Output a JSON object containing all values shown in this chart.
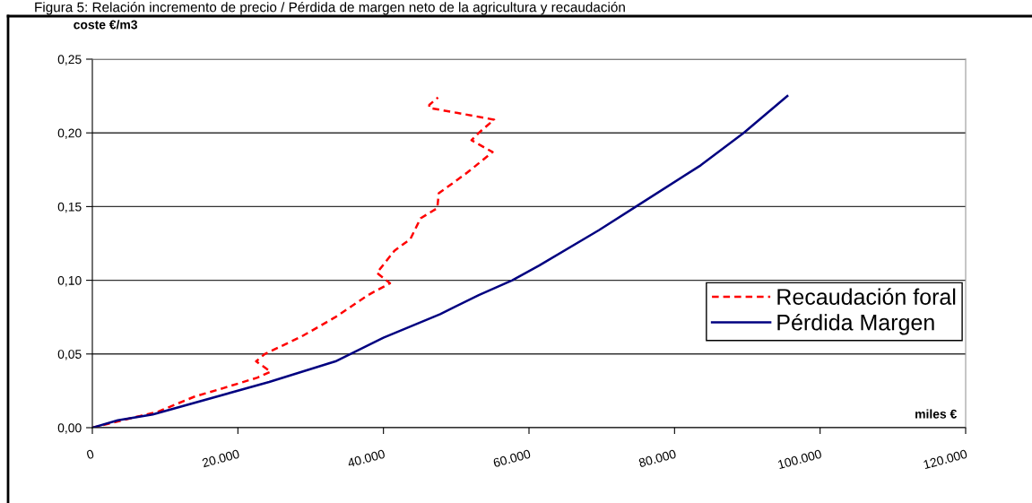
{
  "chart_data": {
    "type": "line",
    "title": "Figura 5: Relación incremento de precio / Pérdida de margen neto de la agricultura y recaudación",
    "xlabel": "miles €",
    "ylabel": "coste €/m3",
    "xlim": [
      0,
      120000
    ],
    "ylim": [
      0,
      0.25
    ],
    "xticks": [
      0,
      {
        "value": 20000,
        "label": "20.000"
      },
      {
        "value": 40000,
        "label": "40.000"
      },
      {
        "value": 60000,
        "label": "60.000"
      },
      {
        "value": 80000,
        "label": "80.000"
      },
      {
        "value": 100000,
        "label": "100.000"
      },
      {
        "value": 120000,
        "label": "120.000"
      }
    ],
    "yticks": [
      {
        "value": 0,
        "label": "0,00"
      },
      {
        "value": 0.05,
        "label": "0,05"
      },
      {
        "value": 0.1,
        "label": "0,10"
      },
      {
        "value": 0.15,
        "label": "0,15"
      },
      {
        "value": 0.2,
        "label": "0,20"
      },
      {
        "value": 0.25,
        "label": "0,25"
      }
    ],
    "grid": "y",
    "legend": "right",
    "series": [
      {
        "name": "Recaudación foral",
        "color": "#ff0000",
        "line_style": "dashed",
        "x": [
          0,
          6600,
          9100,
          14000,
          18100,
          22700,
          24500,
          22500,
          23700,
          28800,
          33400,
          37900,
          40900,
          39100,
          41500,
          43700,
          45100,
          47400,
          47600,
          51500,
          55000,
          52100,
          53100,
          55200,
          46300,
          46300,
          47500
        ],
        "values": [
          0,
          0.008,
          0.011,
          0.021,
          0.027,
          0.034,
          0.038,
          0.045,
          0.05,
          0.062,
          0.075,
          0.09,
          0.098,
          0.105,
          0.12,
          0.128,
          0.142,
          0.149,
          0.159,
          0.173,
          0.187,
          0.195,
          0.2,
          0.209,
          0.217,
          0.219,
          0.224
        ]
      },
      {
        "name": "Pérdida Margen",
        "color": "#000080",
        "line_style": "solid",
        "x": [
          0,
          3500,
          8300,
          24300,
          33400,
          40000,
          47800,
          53100,
          57700,
          61400,
          69600,
          74700,
          83600,
          89500,
          95500
        ],
        "values": [
          0,
          0.005,
          0.009,
          0.031,
          0.045,
          0.061,
          0.077,
          0.09,
          0.1,
          0.11,
          0.134,
          0.15,
          0.178,
          0.2,
          0.225
        ]
      }
    ]
  }
}
